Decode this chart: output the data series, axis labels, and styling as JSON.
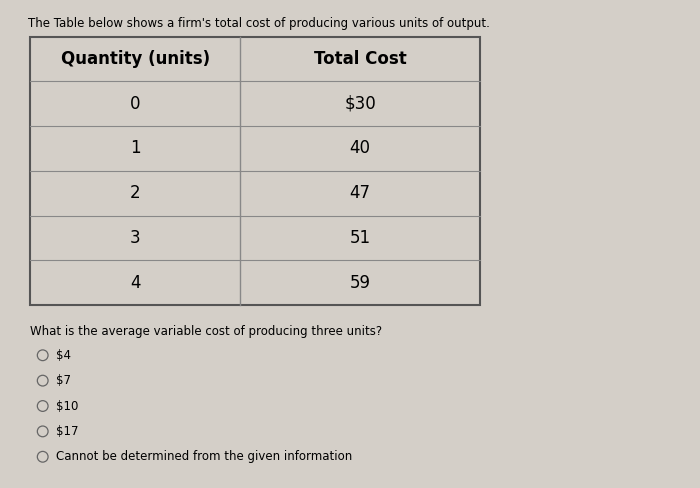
{
  "title_text": "The Table below shows a firm's total cost of producing various units of output.",
  "col_headers": [
    "Quantity (units)",
    "Total Cost"
  ],
  "rows": [
    [
      "0",
      "$30"
    ],
    [
      "1",
      "40"
    ],
    [
      "2",
      "47"
    ],
    [
      "3",
      "51"
    ],
    [
      "4",
      "59"
    ]
  ],
  "question": "What is the average variable cost of producing three units?",
  "choices": [
    "$4",
    "$7",
    "$10",
    "$17",
    "Cannot be determined from the given information"
  ],
  "bg_color": "#d4cfc8",
  "table_bg": "#f0ece6",
  "line_color": "#888888",
  "border_color": "#555555",
  "header_fontsize": 12,
  "data_fontsize": 12,
  "title_fontsize": 8.5,
  "question_fontsize": 8.5,
  "choice_fontsize": 8.5,
  "fig_width": 7.0,
  "fig_height": 4.88,
  "dpi": 100
}
